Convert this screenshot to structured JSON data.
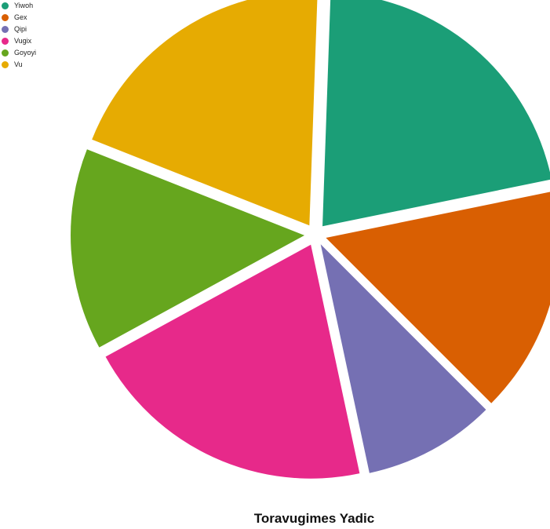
{
  "chart_data": {
    "type": "pie",
    "title": "Toravugimes Yadic",
    "legend_position": "top-left",
    "categories": [
      "Yiwoh",
      "Gex",
      "Qipi",
      "Vugix",
      "Goyoyi",
      "Vu"
    ],
    "values": [
      20.4,
      15.1,
      8.8,
      19.6,
      13.4,
      18.8
    ],
    "exploded": true,
    "start_angle_deg": 2,
    "direction": "clockwise",
    "colors": [
      "#1b9e77",
      "#d95f02",
      "#7570b3",
      "#e7298a",
      "#66a61e",
      "#e6ab02"
    ]
  }
}
